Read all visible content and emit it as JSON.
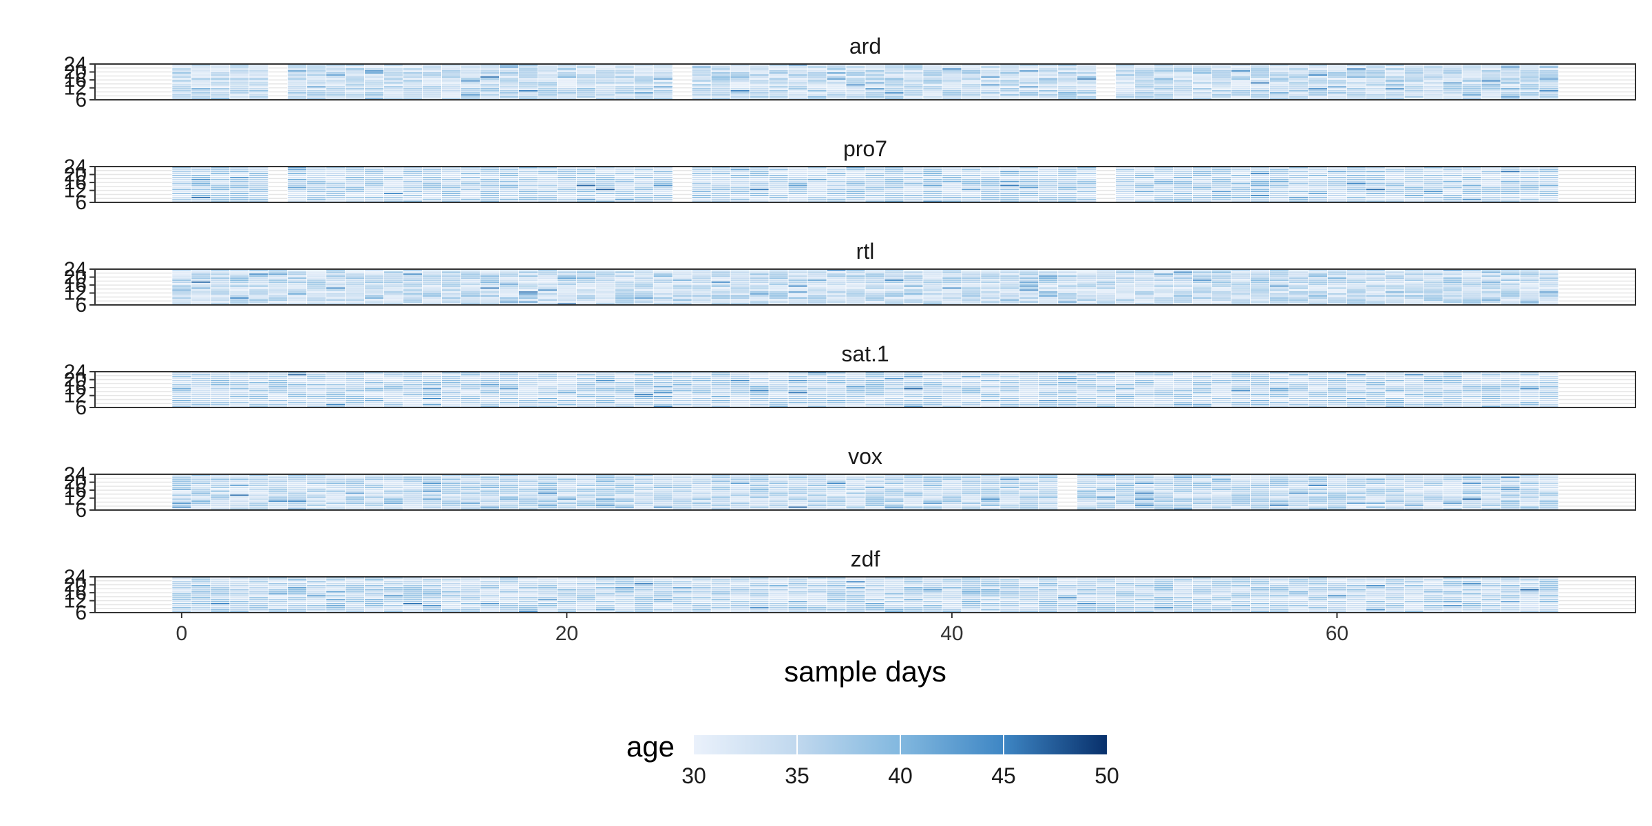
{
  "chart_data": {
    "type": "heatmap",
    "title": "",
    "xlabel": "sample days",
    "ylabel": "",
    "xlim": [
      -4.5,
      75.5
    ],
    "ylim": [
      6,
      24
    ],
    "x_ticks": [
      0,
      20,
      40,
      60
    ],
    "y_ticks": [
      6,
      12,
      16,
      20,
      24
    ],
    "grid": true,
    "day_range": [
      0,
      71
    ],
    "legend": {
      "title": "age",
      "position": "bottom",
      "min": 30,
      "max": 50,
      "ticks": [
        30,
        35,
        40,
        45,
        50
      ],
      "color_low": "#eaf1fb",
      "color_high": "#08306b"
    },
    "facets": [
      {
        "name": "ard",
        "missing_days": [
          5,
          26,
          48
        ]
      },
      {
        "name": "pro7",
        "missing_days": [
          5,
          26,
          48
        ]
      },
      {
        "name": "rtl",
        "missing_days": []
      },
      {
        "name": "sat.1",
        "missing_days": []
      },
      {
        "name": "vox",
        "missing_days": [
          46
        ]
      },
      {
        "name": "zdf",
        "missing_days": []
      }
    ]
  }
}
